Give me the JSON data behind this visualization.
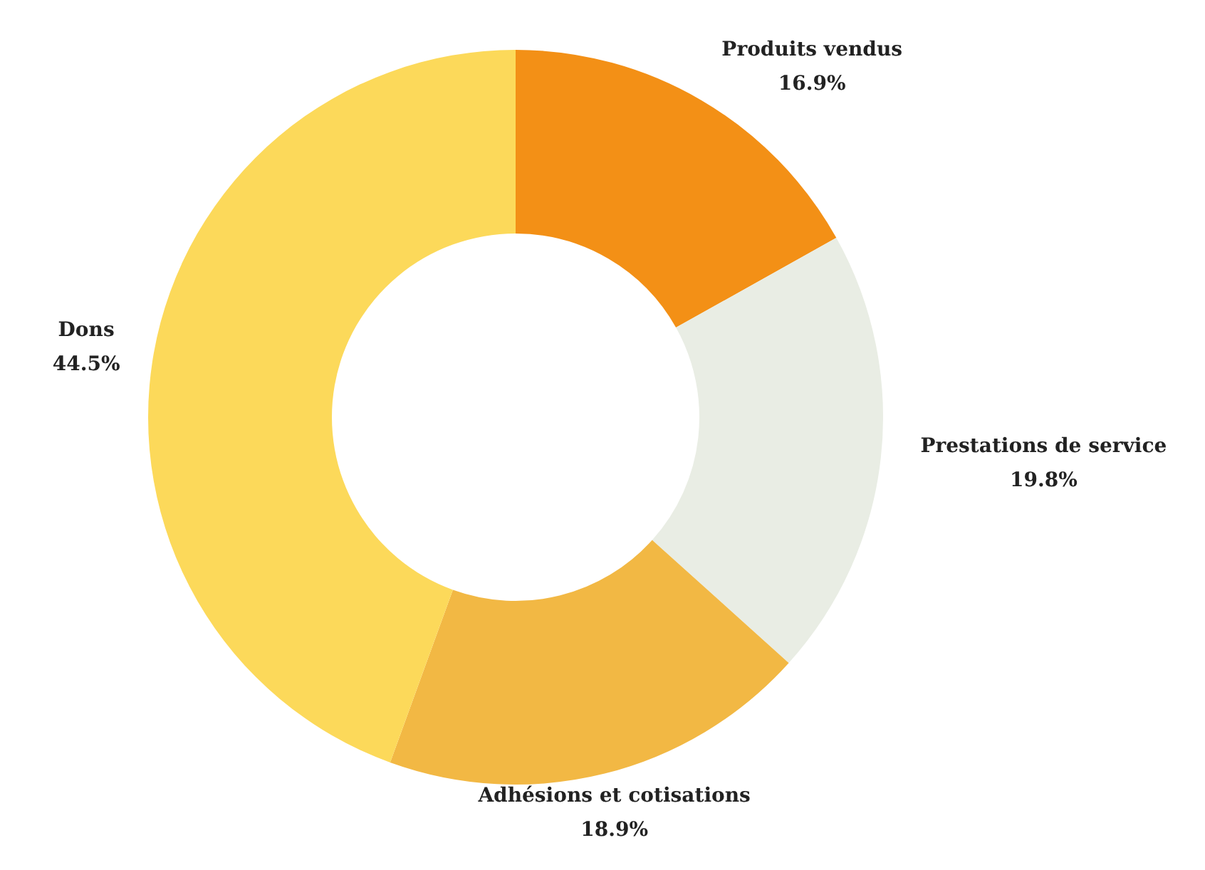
{
  "chart_data": {
    "type": "donut",
    "categories": [
      "Produits vendus",
      "Prestations de service",
      "Adhésions et cotisations",
      "Dons"
    ],
    "values": [
      16.9,
      19.8,
      18.9,
      44.5
    ],
    "colors": [
      "#f39016",
      "#e9ede4",
      "#f2b844",
      "#fcd95a"
    ],
    "value_labels": [
      "16.9%",
      "19.8%",
      "18.9%",
      "44.5%"
    ],
    "legend": false
  }
}
